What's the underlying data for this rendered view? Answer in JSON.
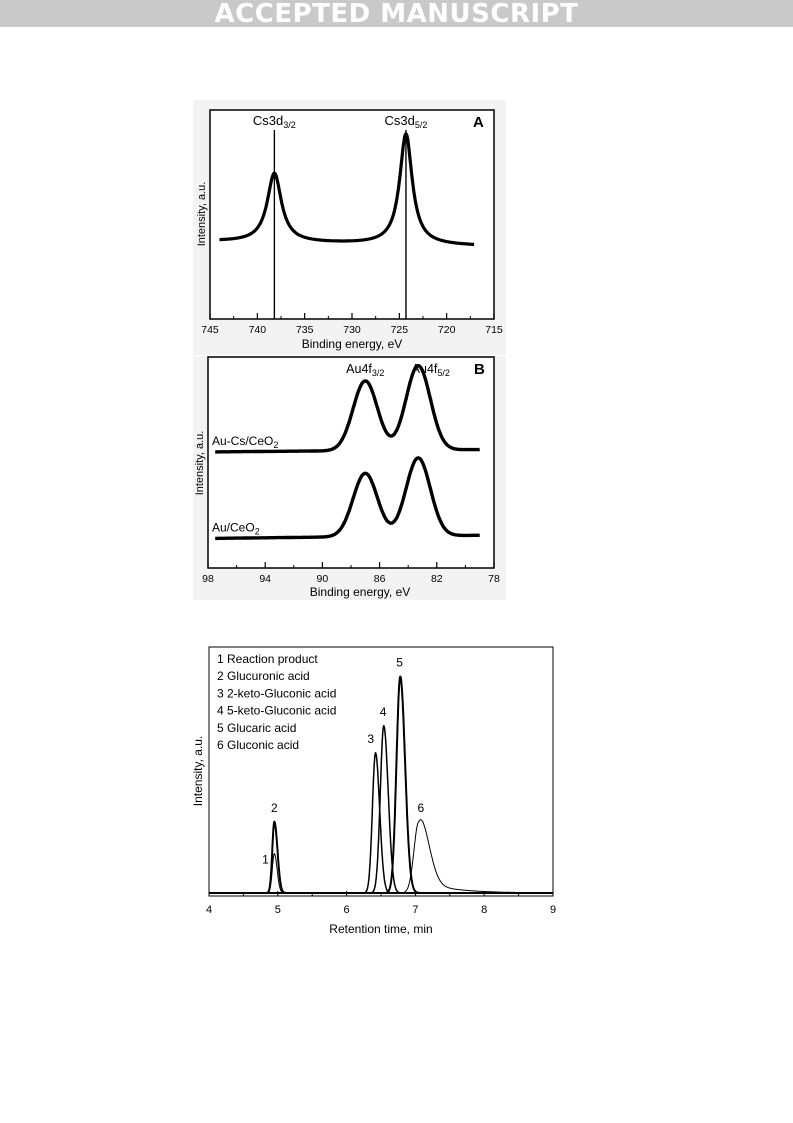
{
  "header": {
    "banner_text": "ACCEPTED MANUSCRIPT",
    "banner_color": "#c9c9c9"
  },
  "chart_data": [
    {
      "id": "A",
      "type": "line",
      "title": "",
      "panel_label": "A",
      "xlabel": "Binding energy, eV",
      "ylabel": "Intensity, a.u.",
      "xlim": [
        745,
        715
      ],
      "xticks": [
        "745",
        "740",
        "735",
        "730",
        "725",
        "720",
        "715"
      ],
      "xtick_values": [
        745,
        740,
        735,
        730,
        725,
        720,
        715
      ],
      "peak_labels": [
        {
          "main": "Cs3d",
          "sub": "3/2",
          "x": 738.2
        },
        {
          "main": "Cs3d",
          "sub": "5/2",
          "x": 724.3
        }
      ],
      "reference_lines": [
        738.2,
        724.3
      ],
      "series": [
        {
          "baseline": 0.36,
          "slope": 0.008,
          "peaks": [
            {
              "center": 738.2,
              "height": 0.33,
              "width": 0.9
            },
            {
              "center": 724.3,
              "height": 0.53,
              "width": 0.8
            }
          ]
        }
      ],
      "ylim": [
        0,
        1
      ],
      "grid": false
    },
    {
      "id": "B",
      "type": "line",
      "title": "",
      "panel_label": "B",
      "xlabel": "Binding energy, eV",
      "ylabel": "Intensity, a.u.",
      "xlim": [
        98,
        78
      ],
      "xticks": [
        "98",
        "94",
        "90",
        "86",
        "82",
        "78"
      ],
      "xtick_values": [
        98,
        94,
        90,
        86,
        82,
        78
      ],
      "peak_labels": [
        {
          "main": "Au4f",
          "sub": "3/2",
          "x": 87.0
        },
        {
          "main": "Au4f",
          "sub": "5/2",
          "x": 83.4
        }
      ],
      "series": [
        {
          "name": "Au-Cs/CeO",
          "name_sub": "2",
          "baseline": 0.55,
          "slope": 0.012,
          "peaks": [
            {
              "center": 87.0,
              "height": 0.33,
              "width": 0.85
            },
            {
              "center": 83.3,
              "height": 0.4,
              "width": 0.85
            }
          ]
        },
        {
          "name": "Au/CeO",
          "name_sub": "2",
          "baseline": 0.14,
          "slope": 0.016,
          "peaks": [
            {
              "center": 87.0,
              "height": 0.3,
              "width": 0.85
            },
            {
              "center": 83.3,
              "height": 0.37,
              "width": 0.85
            }
          ]
        }
      ],
      "ylim": [
        0,
        1
      ],
      "grid": false
    },
    {
      "id": "C",
      "type": "line",
      "title": "",
      "xlabel": "Retention time, min",
      "ylabel": "Intensity, a.u.",
      "xlim": [
        4,
        9
      ],
      "xticks": [
        "4",
        "5",
        "6",
        "7",
        "8",
        "9"
      ],
      "xtick_values": [
        4,
        5,
        6,
        7,
        8,
        9
      ],
      "ylim": [
        0,
        1
      ],
      "legend": {
        "position": "top-left",
        "entries": [
          "1 Reaction product",
          "2 Glucuronic acid",
          "3 2-keto-Gluconic acid",
          "4 5-keto-Gluconic acid",
          "5 Glucaric acid",
          "6 Gluconic acid"
        ]
      },
      "series": [
        {
          "name": "1",
          "peak_x": 4.95,
          "peak_y": 0.16,
          "sigma_left": 0.03,
          "sigma_right": 0.04,
          "tail": 0,
          "label_x": 4.82,
          "label_y": 0.12,
          "stroke": 1
        },
        {
          "name": "2",
          "peak_x": 4.95,
          "peak_y": 0.29,
          "sigma_left": 0.03,
          "sigma_right": 0.045,
          "tail": 0,
          "label_x": 4.95,
          "label_y": 0.33,
          "stroke": 2
        },
        {
          "name": "3",
          "peak_x": 6.42,
          "peak_y": 0.57,
          "sigma_left": 0.045,
          "sigma_right": 0.06,
          "tail": 0,
          "label_x": 6.35,
          "label_y": 0.61,
          "stroke": 1.5
        },
        {
          "name": "4",
          "peak_x": 6.54,
          "peak_y": 0.68,
          "sigma_left": 0.05,
          "sigma_right": 0.065,
          "tail": 0,
          "label_x": 6.53,
          "label_y": 0.72,
          "stroke": 1.5
        },
        {
          "name": "5",
          "peak_x": 6.78,
          "peak_y": 0.88,
          "sigma_left": 0.055,
          "sigma_right": 0.07,
          "tail": 0,
          "label_x": 6.77,
          "label_y": 0.92,
          "stroke": 2
        },
        {
          "name": "6",
          "peak_x": 7.05,
          "peak_y": 0.29,
          "sigma_left": 0.07,
          "sigma_right": 0.14,
          "tail": 0.05,
          "label_x": 7.08,
          "label_y": 0.33,
          "stroke": 1
        }
      ],
      "grid": false
    }
  ]
}
